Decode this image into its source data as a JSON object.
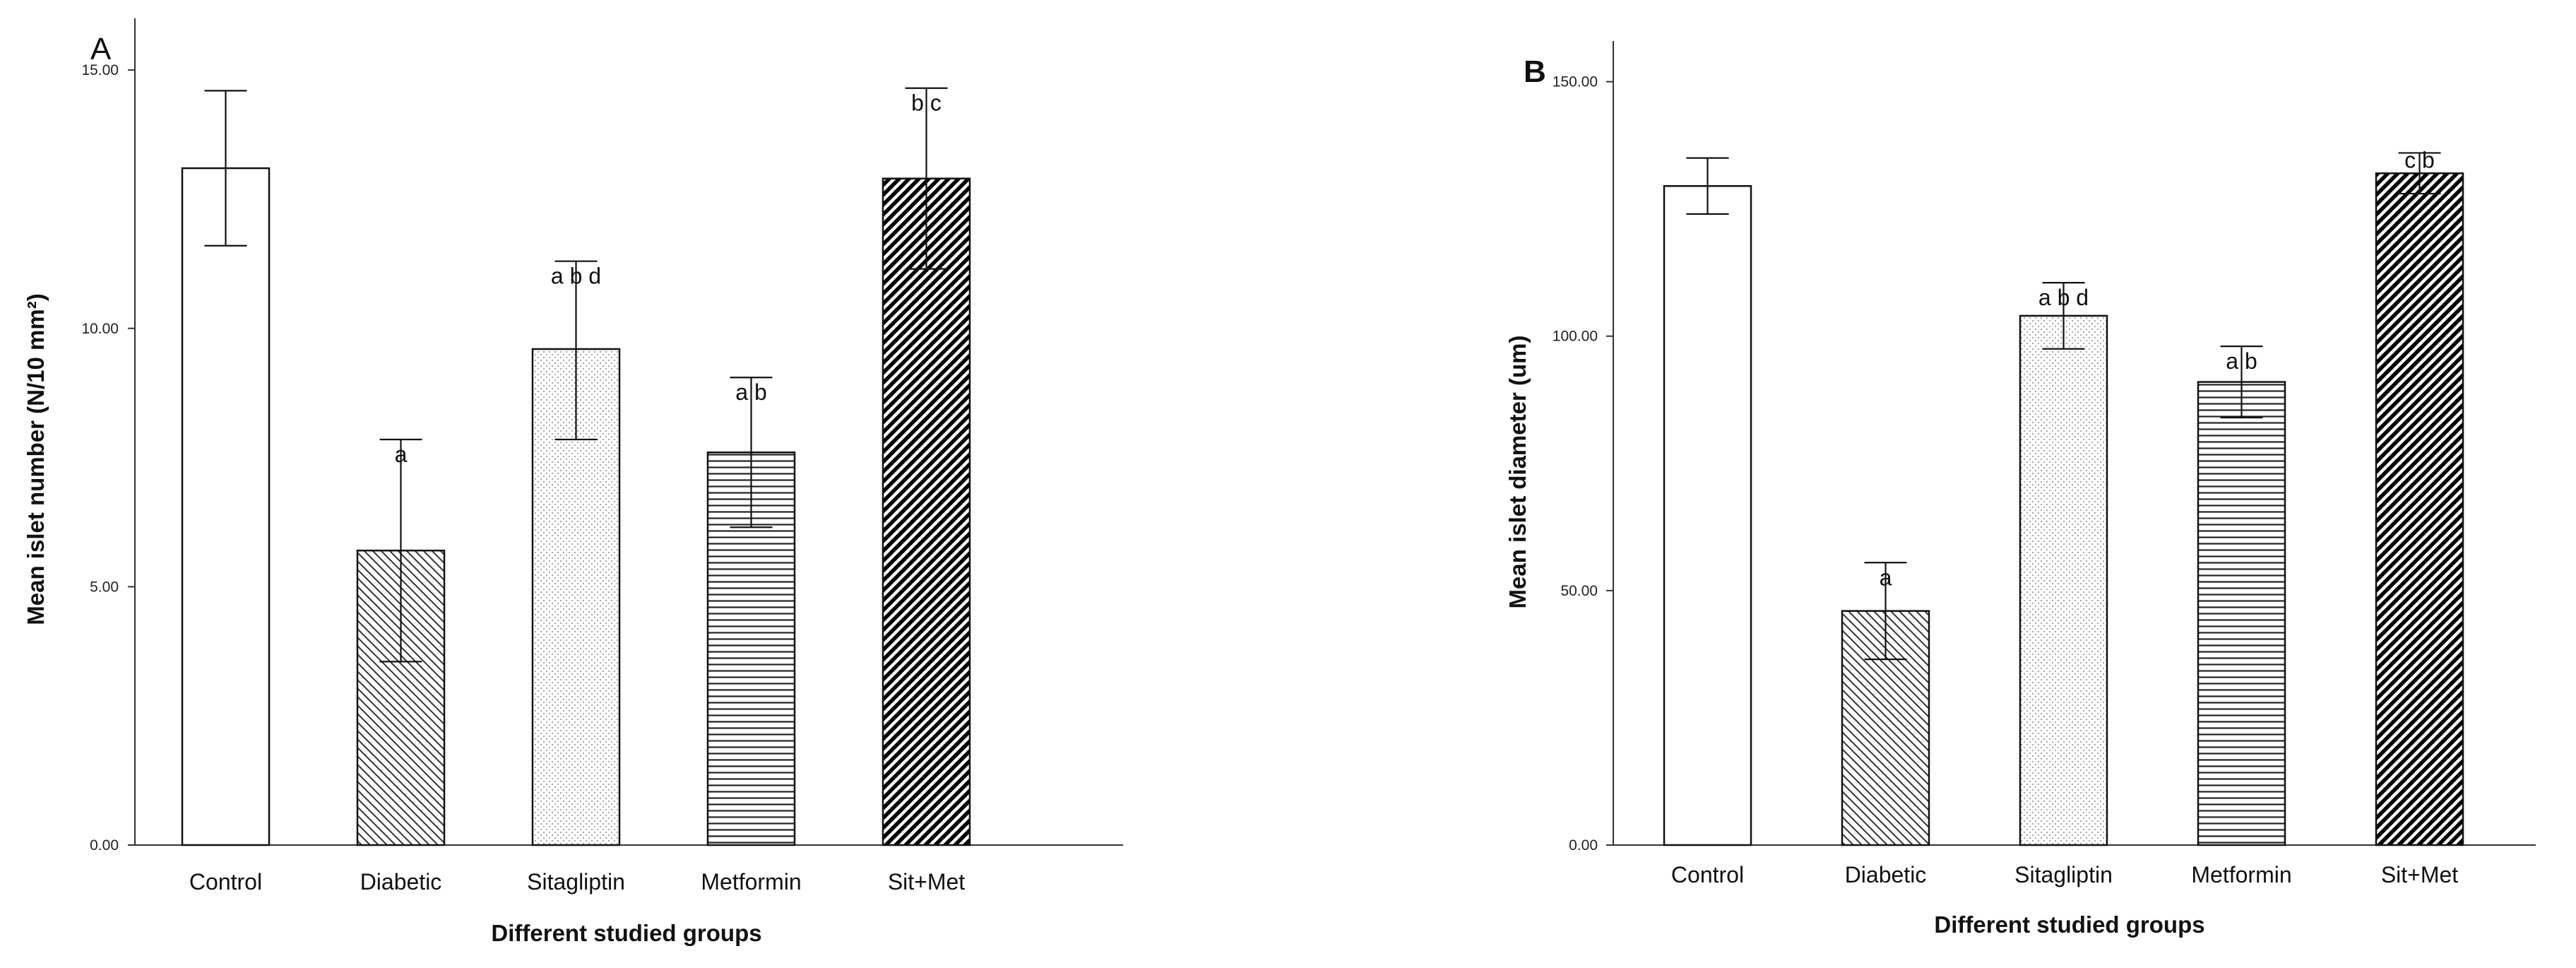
{
  "chart_data": [
    {
      "type": "bar",
      "panel_label": "A",
      "categories": [
        "Control",
        "Diabetic",
        "Sitagliptin",
        "Metformin",
        "Sit+Met"
      ],
      "values": [
        13.1,
        5.7,
        9.6,
        7.6,
        12.9
      ],
      "error_upper": [
        14.6,
        7.85,
        11.3,
        9.05,
        14.65
      ],
      "error_lower": [
        11.6,
        3.55,
        7.85,
        6.15,
        11.15
      ],
      "significance": [
        "",
        "a",
        "a b d",
        "a b",
        "b c"
      ],
      "fills": [
        "none",
        "diag-back",
        "dots",
        "horizontal",
        "diag-dense"
      ],
      "xlabel": "Different studied groups",
      "ylabel": "Mean islet number (N/10 mm²)",
      "ylim": [
        0,
        16
      ],
      "yticks": [
        "0.00",
        "5.00",
        "10.00",
        "15.00"
      ],
      "ytick_values": [
        0,
        5,
        10,
        15
      ]
    },
    {
      "type": "bar",
      "panel_label": "B",
      "categories": [
        "Control",
        "Diabetic",
        "Sitagliptin",
        "Metformin",
        "Sit+Met"
      ],
      "values": [
        129.5,
        46,
        104,
        91,
        132
      ],
      "error_upper": [
        135,
        55.5,
        110.5,
        98,
        136
      ],
      "error_lower": [
        124,
        36.5,
        97.5,
        84,
        128
      ],
      "significance": [
        "",
        "a",
        "a b d",
        "a b",
        "c b"
      ],
      "fills": [
        "none",
        "diag-back",
        "dots",
        "horizontal",
        "diag-dense"
      ],
      "xlabel": "Different studied groups",
      "ylabel": "Mean islet diameter (um)",
      "ylim": [
        0,
        158
      ],
      "yticks": [
        "0.00",
        "50.00",
        "100.00",
        "150.00"
      ],
      "ytick_values": [
        0,
        50,
        100,
        150
      ]
    }
  ]
}
